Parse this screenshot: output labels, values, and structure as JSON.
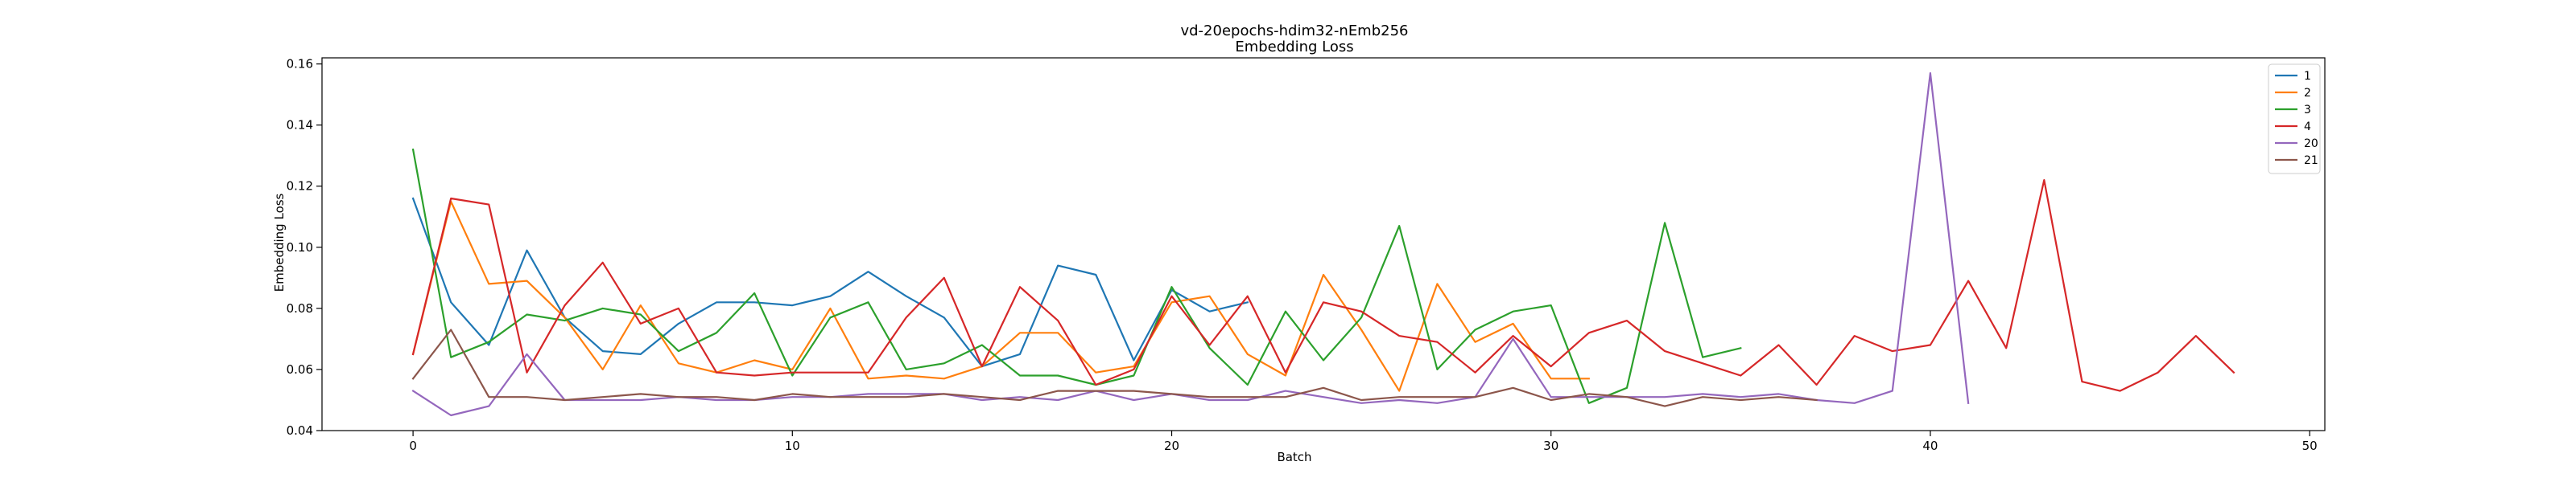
{
  "chart_data": {
    "type": "line",
    "title": "vd-20epochs-hdim32-nEmb256",
    "subtitle": "Embedding Loss",
    "xlabel": "Batch",
    "ylabel": "Embedding Loss",
    "xlim": [
      -2.4,
      50.4
    ],
    "ylim": [
      0.04,
      0.162
    ],
    "xticks": [
      0,
      10,
      20,
      30,
      40,
      50
    ],
    "yticks": [
      0.04,
      0.06,
      0.08,
      0.1,
      0.12,
      0.14,
      0.16
    ],
    "ytick_labels": [
      "0.04",
      "0.06",
      "0.08",
      "0.10",
      "0.12",
      "0.14",
      "0.16"
    ],
    "grid": false,
    "legend_position": "top-right",
    "series": [
      {
        "name": "1",
        "color": "#1f77b4",
        "x": [
          0,
          1,
          2,
          3,
          4,
          5,
          6,
          7,
          8,
          9,
          10,
          11,
          12,
          13,
          14,
          15,
          16,
          17,
          18,
          19,
          20,
          21,
          22
        ],
        "y": [
          0.116,
          0.082,
          0.068,
          0.099,
          0.077,
          0.066,
          0.065,
          0.075,
          0.082,
          0.082,
          0.081,
          0.084,
          0.092,
          0.084,
          0.077,
          0.061,
          0.065,
          0.094,
          0.091,
          0.063,
          0.086,
          0.079,
          0.082
        ]
      },
      {
        "name": "2",
        "color": "#ff7f0e",
        "x": [
          0,
          1,
          2,
          3,
          4,
          5,
          6,
          7,
          8,
          9,
          10,
          11,
          12,
          13,
          14,
          15,
          16,
          17,
          18,
          19,
          20,
          21,
          22,
          23,
          24,
          25,
          26,
          27,
          28,
          29,
          30,
          31
        ],
        "y": [
          0.065,
          0.115,
          0.088,
          0.089,
          0.077,
          0.06,
          0.081,
          0.062,
          0.059,
          0.063,
          0.06,
          0.08,
          0.057,
          0.058,
          0.057,
          0.061,
          0.072,
          0.072,
          0.059,
          0.061,
          0.082,
          0.084,
          0.065,
          0.058,
          0.091,
          0.073,
          0.053,
          0.088,
          0.069,
          0.075,
          0.057,
          0.057
        ]
      },
      {
        "name": "3",
        "color": "#2ca02c",
        "x": [
          0,
          1,
          2,
          3,
          4,
          5,
          6,
          7,
          8,
          9,
          10,
          11,
          12,
          13,
          14,
          15,
          16,
          17,
          18,
          19,
          20,
          21,
          22,
          23,
          24,
          25,
          26,
          27,
          28,
          29,
          30,
          31,
          32,
          33,
          34,
          35
        ],
        "y": [
          0.132,
          0.064,
          0.069,
          0.078,
          0.076,
          0.08,
          0.078,
          0.066,
          0.072,
          0.085,
          0.058,
          0.077,
          0.082,
          0.06,
          0.062,
          0.068,
          0.058,
          0.058,
          0.055,
          0.058,
          0.087,
          0.067,
          0.055,
          0.079,
          0.063,
          0.077,
          0.107,
          0.06,
          0.073,
          0.079,
          0.081,
          0.049,
          0.054,
          0.108,
          0.064,
          0.067
        ]
      },
      {
        "name": "4",
        "color": "#d62728",
        "x": [
          0,
          1,
          2,
          3,
          4,
          5,
          6,
          7,
          8,
          9,
          10,
          11,
          12,
          13,
          14,
          15,
          16,
          17,
          18,
          19,
          20,
          21,
          22,
          23,
          24,
          25,
          26,
          27,
          28,
          29,
          30,
          31,
          32,
          33,
          34,
          35,
          36,
          37,
          38,
          39,
          40,
          41,
          42,
          43,
          44,
          45,
          46,
          47,
          48
        ],
        "y": [
          0.065,
          0.116,
          0.114,
          0.059,
          0.081,
          0.095,
          0.075,
          0.08,
          0.059,
          0.058,
          0.059,
          0.059,
          0.059,
          0.077,
          0.09,
          0.061,
          0.087,
          0.076,
          0.055,
          0.06,
          0.084,
          0.068,
          0.084,
          0.059,
          0.082,
          0.079,
          0.071,
          0.069,
          0.059,
          0.071,
          0.061,
          0.072,
          0.076,
          0.066,
          0.062,
          0.058,
          0.068,
          0.055,
          0.071,
          0.066,
          0.068,
          0.089,
          0.067,
          0.122,
          0.056,
          0.053,
          0.059,
          0.071,
          0.059
        ]
      },
      {
        "name": "20",
        "color": "#9467bd",
        "x": [
          0,
          1,
          2,
          3,
          4,
          5,
          6,
          7,
          8,
          9,
          10,
          11,
          12,
          13,
          14,
          15,
          16,
          17,
          18,
          19,
          20,
          21,
          22,
          23,
          24,
          25,
          26,
          27,
          28,
          29,
          30,
          31,
          32,
          33,
          34,
          35,
          36,
          37,
          38,
          39,
          40,
          41
        ],
        "y": [
          0.053,
          0.045,
          0.048,
          0.065,
          0.05,
          0.05,
          0.05,
          0.051,
          0.05,
          0.05,
          0.051,
          0.051,
          0.052,
          0.052,
          0.052,
          0.05,
          0.051,
          0.05,
          0.053,
          0.05,
          0.052,
          0.05,
          0.05,
          0.053,
          0.051,
          0.049,
          0.05,
          0.049,
          0.051,
          0.07,
          0.051,
          0.051,
          0.051,
          0.051,
          0.052,
          0.051,
          0.052,
          0.05,
          0.049,
          0.053,
          0.157,
          0.049
        ]
      },
      {
        "name": "21",
        "color": "#8c564b",
        "x": [
          0,
          1,
          2,
          3,
          4,
          5,
          6,
          7,
          8,
          9,
          10,
          11,
          12,
          13,
          14,
          15,
          16,
          17,
          18,
          19,
          20,
          21,
          22,
          23,
          24,
          25,
          26,
          27,
          28,
          29,
          30,
          31,
          32,
          33,
          34,
          35,
          36,
          37
        ],
        "y": [
          0.057,
          0.073,
          0.051,
          0.051,
          0.05,
          0.051,
          0.052,
          0.051,
          0.051,
          0.05,
          0.052,
          0.051,
          0.051,
          0.051,
          0.052,
          0.051,
          0.05,
          0.053,
          0.053,
          0.053,
          0.052,
          0.051,
          0.051,
          0.051,
          0.054,
          0.05,
          0.051,
          0.051,
          0.051,
          0.054,
          0.05,
          0.052,
          0.051,
          0.048,
          0.051,
          0.05,
          0.051,
          0.05
        ]
      }
    ]
  }
}
